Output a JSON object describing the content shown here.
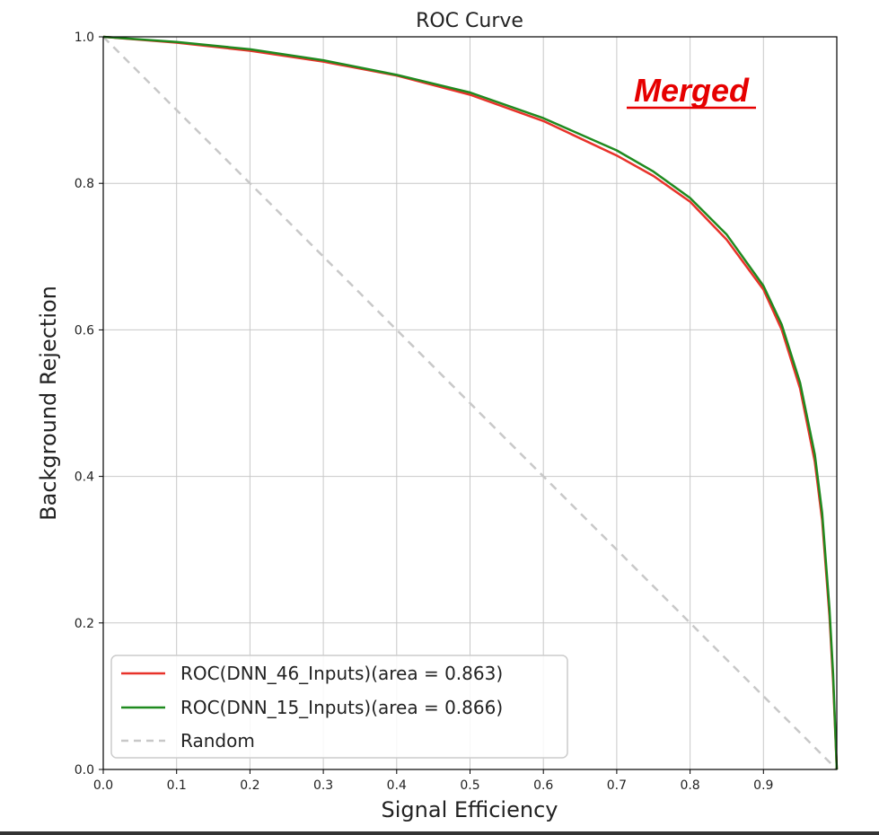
{
  "chart_data": {
    "type": "line",
    "title": "ROC Curve",
    "xlabel": "Signal Efficiency",
    "ylabel": "Background Rejection",
    "xlim": [
      0.0,
      1.0
    ],
    "ylim": [
      0.0,
      1.0
    ],
    "xticks": [
      "0.0",
      "0.1",
      "0.2",
      "0.3",
      "0.4",
      "0.5",
      "0.6",
      "0.7",
      "0.8",
      "0.9"
    ],
    "yticks": [
      "0.0",
      "0.2",
      "0.4",
      "0.6",
      "0.8",
      "1.0"
    ],
    "grid": true,
    "legend_position": "lower-left",
    "annotation": "Merged",
    "annotation_color": "#e60000",
    "series": [
      {
        "name": "ROC(DNN_46_Inputs)(area = 0.863)",
        "color": "#e8322a",
        "style": "solid",
        "x": [
          0.0,
          0.1,
          0.2,
          0.3,
          0.4,
          0.5,
          0.6,
          0.7,
          0.75,
          0.8,
          0.85,
          0.9,
          0.925,
          0.95,
          0.97,
          0.98,
          0.99,
          0.995,
          1.0
        ],
        "y": [
          1.0,
          0.992,
          0.981,
          0.966,
          0.947,
          0.921,
          0.885,
          0.838,
          0.81,
          0.775,
          0.723,
          0.655,
          0.6,
          0.52,
          0.42,
          0.34,
          0.21,
          0.12,
          0.0
        ]
      },
      {
        "name": "ROC(DNN_15_Inputs)(area = 0.866)",
        "color": "#1f8a1f",
        "style": "solid",
        "x": [
          0.0,
          0.1,
          0.2,
          0.3,
          0.4,
          0.5,
          0.6,
          0.7,
          0.75,
          0.8,
          0.85,
          0.9,
          0.925,
          0.95,
          0.97,
          0.98,
          0.99,
          0.995,
          1.0
        ],
        "y": [
          1.0,
          0.993,
          0.983,
          0.968,
          0.948,
          0.924,
          0.889,
          0.845,
          0.816,
          0.78,
          0.73,
          0.66,
          0.607,
          0.528,
          0.43,
          0.35,
          0.22,
          0.13,
          0.0
        ]
      },
      {
        "name": "Random",
        "color": "#c8c8c8",
        "style": "dashed",
        "x": [
          0.0,
          1.0
        ],
        "y": [
          1.0,
          0.0
        ]
      }
    ]
  }
}
